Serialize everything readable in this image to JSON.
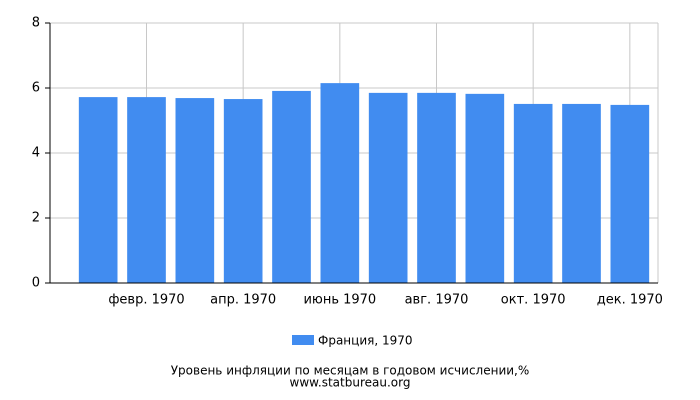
{
  "chart_data": {
    "type": "bar",
    "title": "Уровень инфляции по месяцам в годовом исчислении,%",
    "source": "www.statbureau.org",
    "categories": [
      null,
      "февр. 1970",
      null,
      "апр. 1970",
      null,
      "июнь 1970",
      null,
      "авг. 1970",
      null,
      "окт. 1970",
      null,
      "дек. 1970"
    ],
    "series": [
      {
        "name": "Франция, 1970",
        "color": "#418cf0",
        "values": [
          5.72,
          5.72,
          5.69,
          5.66,
          5.91,
          6.15,
          5.85,
          5.85,
          5.82,
          5.51,
          5.51,
          5.48
        ]
      }
    ],
    "ylim": [
      0,
      8
    ],
    "yticks": [
      0,
      2,
      4,
      6,
      8
    ],
    "grid": true
  }
}
